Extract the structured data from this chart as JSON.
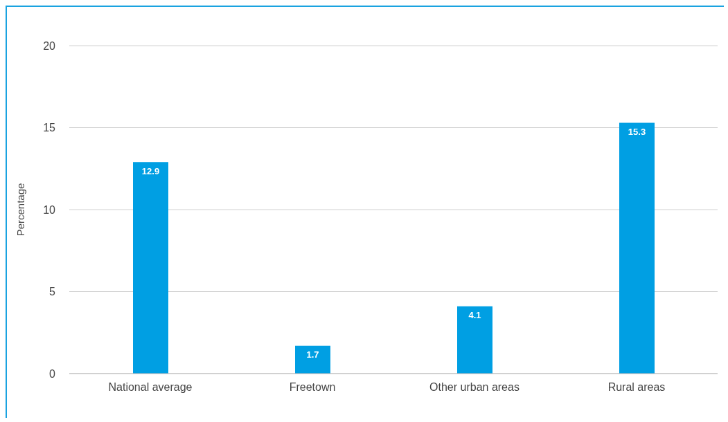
{
  "chart_data": {
    "type": "bar",
    "ylabel": "Percentage",
    "categories": [
      "National average",
      "Freetown",
      "Other urban areas",
      "Rural areas"
    ],
    "values": [
      12.9,
      1.7,
      4.1,
      15.3
    ],
    "color": "#009fe3",
    "ylim": [
      0,
      20
    ],
    "yticks": [
      0,
      5,
      10,
      15,
      20
    ],
    "grid": "y",
    "data_labels": true
  }
}
